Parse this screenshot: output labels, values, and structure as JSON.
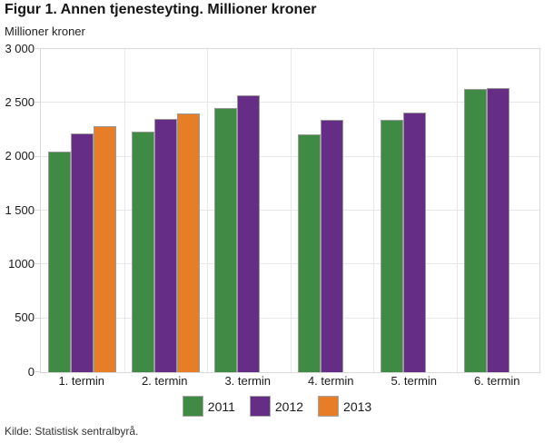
{
  "title": "Figur 1. Annen tjenesteyting. Millioner kroner",
  "subtitle": "Millioner kroner",
  "source": "Kilde: Statistisk sentralbyrå.",
  "colors": {
    "series_2011": "#3f8a44",
    "series_2012": "#662d86",
    "series_2013": "#e87d28",
    "bar_border": "#9a9a9a",
    "gridline": "#e8e8e8",
    "plot_border": "#d9d9d9"
  },
  "chart_data": {
    "type": "bar",
    "title": "Figur 1. Annen tjenesteyting. Millioner kroner",
    "ylabel": "Millioner kroner",
    "xlabel": "",
    "categories": [
      "1. termin",
      "2. termin",
      "3. termin",
      "4. termin",
      "5. termin",
      "6. termin"
    ],
    "series": [
      {
        "name": "2011",
        "color": "#3f8a44",
        "values": [
          2050,
          2230,
          2450,
          2210,
          2340,
          2630
        ]
      },
      {
        "name": "2012",
        "color": "#662d86",
        "values": [
          2220,
          2350,
          2570,
          2340,
          2410,
          2640
        ]
      },
      {
        "name": "2013",
        "color": "#e87d28",
        "values": [
          2280,
          2400,
          null,
          null,
          null,
          null
        ]
      }
    ],
    "ylim": [
      0,
      3000
    ],
    "ytick_step": 500,
    "ytick_labels": [
      "0",
      "500",
      "1000",
      "1 500",
      "2 000",
      "2 500",
      "3 000"
    ],
    "grid": true,
    "legend_position": "bottom"
  }
}
